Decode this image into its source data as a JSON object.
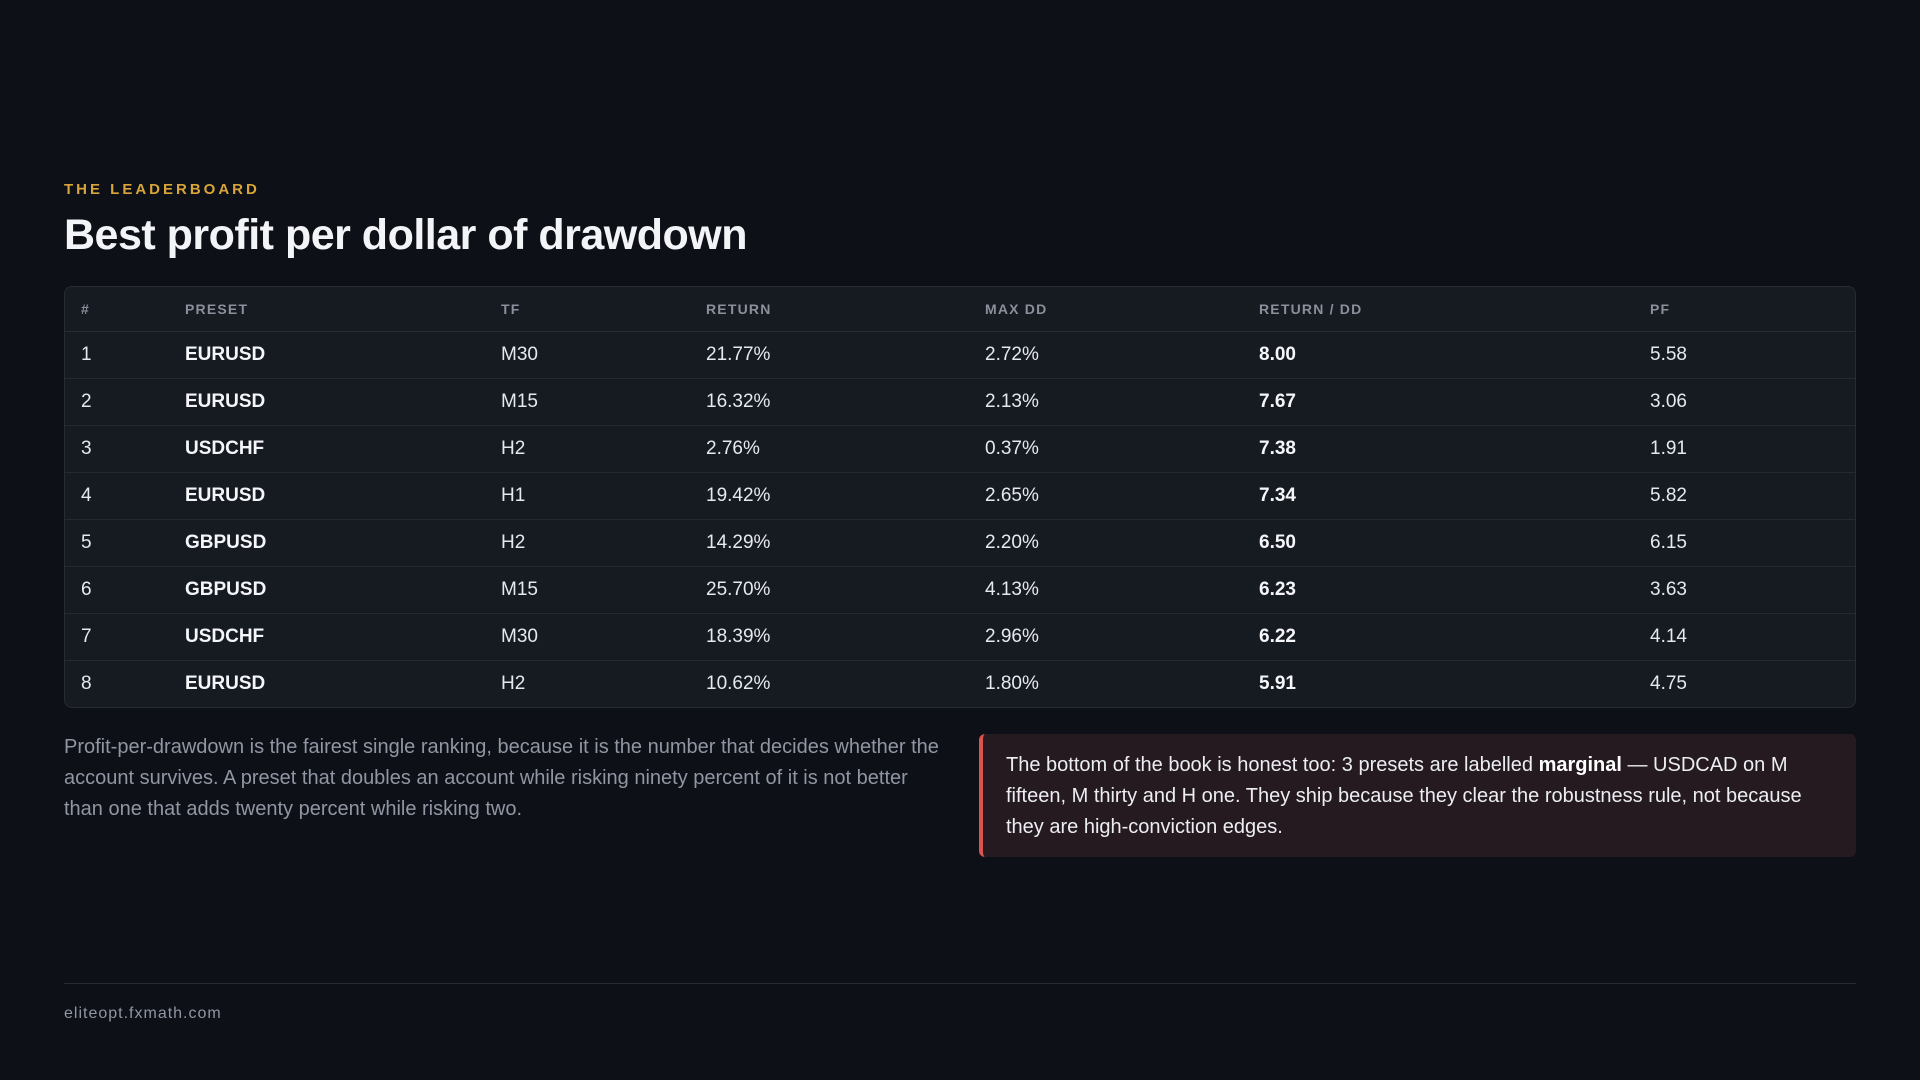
{
  "header": {
    "eyebrow": "THE LEADERBOARD",
    "title": "Best profit per dollar of drawdown"
  },
  "table": {
    "columns": [
      "#",
      "PRESET",
      "TF",
      "RETURN",
      "MAX DD",
      "RETURN / DD",
      "PF"
    ],
    "rows": [
      {
        "rank": "1",
        "preset": "EURUSD",
        "tf": "M30",
        "return": "21.77%",
        "max_dd": "2.72%",
        "return_dd": "8.00",
        "pf": "5.58"
      },
      {
        "rank": "2",
        "preset": "EURUSD",
        "tf": "M15",
        "return": "16.32%",
        "max_dd": "2.13%",
        "return_dd": "7.67",
        "pf": "3.06"
      },
      {
        "rank": "3",
        "preset": "USDCHF",
        "tf": "H2",
        "return": "2.76%",
        "max_dd": "0.37%",
        "return_dd": "7.38",
        "pf": "1.91"
      },
      {
        "rank": "4",
        "preset": "EURUSD",
        "tf": "H1",
        "return": "19.42%",
        "max_dd": "2.65%",
        "return_dd": "7.34",
        "pf": "5.82"
      },
      {
        "rank": "5",
        "preset": "GBPUSD",
        "tf": "H2",
        "return": "14.29%",
        "max_dd": "2.20%",
        "return_dd": "6.50",
        "pf": "6.15"
      },
      {
        "rank": "6",
        "preset": "GBPUSD",
        "tf": "M15",
        "return": "25.70%",
        "max_dd": "4.13%",
        "return_dd": "6.23",
        "pf": "3.63"
      },
      {
        "rank": "7",
        "preset": "USDCHF",
        "tf": "M30",
        "return": "18.39%",
        "max_dd": "2.96%",
        "return_dd": "6.22",
        "pf": "4.14"
      },
      {
        "rank": "8",
        "preset": "EURUSD",
        "tf": "H2",
        "return": "10.62%",
        "max_dd": "1.80%",
        "return_dd": "5.91",
        "pf": "4.75"
      }
    ]
  },
  "note": "Profit-per-drawdown is the fairest single ranking, because it is the number that decides whether the account survives. A preset that doubles an account while risking ninety percent of it is not better than one that adds twenty percent while risking two.",
  "callout": {
    "before": "The bottom of the book is honest too: 3 presets are labelled ",
    "emphasis": "marginal",
    "after": " — USDCAD on M fifteen, M thirty and H one. They ship because they clear the robustness rule, not because they are high-conviction edges."
  },
  "footer": {
    "domain": "eliteopt.fxmath.com"
  },
  "colors": {
    "background": "#0d1017",
    "accent": "#d9a53a",
    "callout_border": "#d9534f"
  }
}
